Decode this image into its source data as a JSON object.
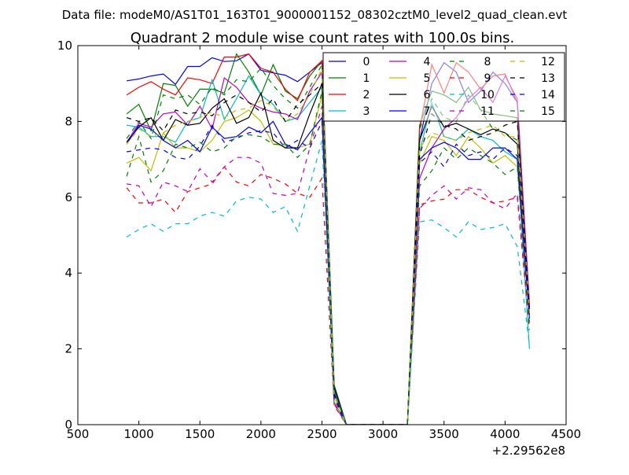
{
  "chart_data": {
    "type": "line",
    "suptitle": "Data file: modeM0/AS1T01_163T01_9000001152_08302cztM0_level2_quad_clean.evt",
    "title": "Quadrant 2 module wise count rates with 100.0s bins.",
    "xlabel": "",
    "ylabel": "",
    "x_offset_label": "+2.29562e8",
    "xlim": [
      500,
      4500
    ],
    "ylim": [
      0,
      10
    ],
    "xticks": [
      500,
      1000,
      1500,
      2000,
      2500,
      3000,
      3500,
      4000,
      4500
    ],
    "yticks": [
      0,
      2,
      4,
      6,
      8,
      10
    ],
    "grid": false,
    "legend_placement": "top-right",
    "legend_columns": 4,
    "x": [
      900,
      1000,
      1100,
      1200,
      1300,
      1400,
      1500,
      1600,
      1700,
      1800,
      1900,
      2000,
      2100,
      2200,
      2300,
      2400,
      2500,
      2600,
      2700,
      2800,
      2900,
      3000,
      3100,
      3200,
      3300,
      3400,
      3500,
      3600,
      3700,
      3800,
      3900,
      4000,
      4100,
      4200
    ],
    "series": [
      {
        "name": "0",
        "color": "#0000ff",
        "style": "solid",
        "values": [
          9.07,
          9.12,
          9.2,
          9.25,
          8.98,
          9.45,
          9.45,
          9.68,
          9.58,
          9.6,
          9.78,
          9.35,
          9.28,
          9.22,
          9.05,
          9.3,
          9.55,
          1.0,
          0,
          0,
          0,
          0,
          0,
          0,
          7.5,
          9.0,
          9.55,
          9.3,
          8.5,
          8.8,
          9.3,
          9.0,
          8.5,
          3.0
        ]
      },
      {
        "name": "1",
        "color": "#008000",
        "style": "solid",
        "values": [
          8.2,
          8.45,
          7.75,
          9.0,
          8.95,
          8.4,
          8.85,
          8.85,
          8.75,
          9.78,
          9.3,
          8.7,
          9.5,
          8.8,
          8.6,
          9.2,
          9.6,
          1.05,
          0,
          0,
          0,
          0,
          0,
          0,
          7.9,
          8.8,
          8.7,
          8.5,
          8.9,
          8.3,
          8.2,
          8.15,
          8.1,
          3.1
        ]
      },
      {
        "name": "2",
        "color": "#ff0000",
        "style": "solid",
        "values": [
          8.7,
          8.9,
          9.05,
          8.85,
          8.7,
          9.15,
          9.1,
          9.0,
          9.7,
          9.7,
          9.78,
          9.4,
          9.3,
          8.85,
          8.55,
          9.3,
          9.6,
          0.6,
          0,
          0,
          0,
          0,
          0,
          0,
          7.8,
          9.5,
          8.75,
          9.55,
          9.3,
          8.85,
          9.2,
          9.25,
          8.5,
          3.2
        ]
      },
      {
        "name": "3",
        "color": "#00bfbf",
        "style": "solid",
        "values": [
          7.9,
          7.85,
          7.6,
          7.6,
          7.45,
          8.0,
          8.1,
          9.1,
          8.05,
          8.6,
          9.2,
          8.7,
          8.45,
          8.0,
          8.1,
          8.5,
          8.9,
          0.9,
          0,
          0,
          0,
          0,
          0,
          0,
          7.2,
          8.5,
          7.6,
          7.5,
          7.8,
          7.6,
          7.5,
          7.2,
          7.0,
          2.0
        ]
      },
      {
        "name": "4",
        "color": "#bf00bf",
        "style": "solid",
        "values": [
          7.45,
          7.95,
          7.85,
          8.2,
          8.25,
          7.9,
          8.4,
          7.8,
          9.15,
          8.9,
          8.5,
          8.35,
          8.25,
          8.2,
          8.05,
          8.8,
          9.3,
          0.85,
          0,
          0,
          0,
          0,
          0,
          0,
          6.5,
          7.3,
          7.8,
          8.1,
          8.6,
          8.9,
          8.5,
          9.2,
          8.6,
          3.1
        ]
      },
      {
        "name": "5",
        "color": "#bfbf00",
        "style": "solid",
        "values": [
          6.9,
          7.05,
          6.7,
          7.7,
          7.3,
          7.3,
          7.2,
          7.5,
          8.0,
          8.1,
          8.3,
          8.0,
          7.4,
          7.35,
          7.3,
          7.4,
          8.7,
          0.8,
          0,
          0,
          0,
          0,
          0,
          0,
          6.9,
          7.6,
          7.5,
          7.1,
          7.6,
          7.3,
          6.9,
          7.1,
          6.8,
          2.9
        ]
      },
      {
        "name": "6",
        "color": "#000000",
        "style": "solid",
        "values": [
          7.45,
          7.85,
          8.1,
          7.5,
          8.05,
          7.9,
          7.95,
          8.35,
          8.6,
          7.95,
          8.1,
          8.75,
          7.5,
          7.3,
          7.3,
          8.2,
          9.0,
          1.0,
          0,
          0,
          0,
          0,
          0,
          0,
          7.5,
          8.4,
          7.85,
          7.95,
          7.8,
          7.65,
          7.8,
          7.7,
          7.4,
          3.0
        ]
      },
      {
        "name": "7",
        "color": "#0000ff",
        "style": "solid",
        "values": [
          7.4,
          7.9,
          7.8,
          7.5,
          7.3,
          7.5,
          7.2,
          7.85,
          7.55,
          7.6,
          7.85,
          7.7,
          8.0,
          7.4,
          7.25,
          7.7,
          8.1,
          0.95,
          0,
          0,
          0,
          0,
          0,
          0,
          7.0,
          7.3,
          7.45,
          7.3,
          7.0,
          7.0,
          7.3,
          7.3,
          7.0,
          2.8
        ]
      },
      {
        "name": "8",
        "color": "#008000",
        "style": "dashed",
        "values": [
          7.55,
          8.0,
          7.55,
          8.7,
          8.6,
          8.7,
          8.45,
          8.9,
          8.7,
          9.1,
          9.05,
          9.4,
          8.95,
          8.6,
          8.35,
          8.9,
          9.5,
          0.9,
          0,
          0,
          0,
          0,
          0,
          0,
          7.8,
          8.6,
          8.1,
          8.0,
          8.7,
          8.3,
          7.8,
          7.7,
          7.5,
          2.9
        ]
      },
      {
        "name": "9",
        "color": "#ff0000",
        "style": "dashed",
        "values": [
          6.25,
          5.85,
          5.85,
          5.95,
          5.6,
          6.15,
          6.25,
          6.35,
          6.8,
          6.4,
          6.3,
          6.6,
          6.5,
          6.35,
          6.1,
          6.0,
          6.5,
          0.5,
          0,
          0,
          0,
          0,
          0,
          0,
          5.8,
          5.9,
          5.95,
          6.2,
          6.2,
          6.0,
          5.85,
          5.9,
          6.0,
          2.5
        ]
      },
      {
        "name": "10",
        "color": "#00bfbf",
        "style": "dashed",
        "values": [
          4.95,
          5.15,
          5.3,
          5.1,
          5.3,
          5.3,
          5.5,
          5.6,
          5.5,
          5.9,
          6.0,
          5.95,
          5.6,
          5.75,
          5.1,
          6.3,
          7.5,
          0.6,
          0,
          0,
          0,
          0,
          0,
          0,
          5.35,
          5.4,
          5.2,
          4.95,
          5.35,
          5.15,
          5.2,
          5.3,
          4.7,
          2.1
        ]
      },
      {
        "name": "11",
        "color": "#bf00bf",
        "style": "dashed",
        "values": [
          6.35,
          6.3,
          5.75,
          6.4,
          6.3,
          6.15,
          6.75,
          6.4,
          6.8,
          7.05,
          7.05,
          6.9,
          6.1,
          6.05,
          6.1,
          7.3,
          8.4,
          0.55,
          0,
          0,
          0,
          0,
          0,
          0,
          5.7,
          6.05,
          6.3,
          5.95,
          6.25,
          6.2,
          5.85,
          5.7,
          6.1,
          2.7
        ]
      },
      {
        "name": "12",
        "color": "#bfbf00",
        "style": "dashed",
        "values": [
          7.4,
          7.8,
          7.6,
          7.7,
          7.9,
          8.0,
          8.1,
          8.25,
          8.1,
          8.3,
          8.35,
          8.55,
          8.4,
          8.0,
          8.2,
          8.7,
          9.4,
          0.75,
          0,
          0,
          0,
          0,
          0,
          0,
          7.3,
          7.7,
          7.6,
          7.5,
          7.7,
          7.8,
          7.9,
          7.6,
          7.6,
          3.0
        ]
      },
      {
        "name": "13",
        "color": "#000000",
        "style": "dashed",
        "values": [
          8.1,
          8.0,
          8.1,
          7.75,
          8.3,
          8.2,
          8.25,
          8.15,
          8.5,
          8.7,
          8.5,
          8.25,
          8.6,
          8.0,
          8.45,
          8.7,
          9.0,
          0.8,
          0,
          0,
          0,
          0,
          0,
          0,
          7.1,
          8.2,
          7.9,
          7.8,
          7.5,
          7.6,
          7.7,
          7.9,
          8.0,
          3.0
        ]
      },
      {
        "name": "14",
        "color": "#0000ff",
        "style": "dashed",
        "values": [
          7.2,
          7.25,
          7.3,
          7.25,
          7.05,
          7.0,
          7.35,
          7.9,
          7.45,
          7.55,
          7.7,
          7.75,
          7.7,
          7.3,
          7.5,
          7.3,
          8.0,
          0.7,
          0,
          0,
          0,
          0,
          0,
          0,
          6.9,
          7.2,
          6.8,
          7.4,
          7.1,
          7.2,
          7.0,
          7.3,
          7.1,
          2.9
        ]
      },
      {
        "name": "15",
        "color": "#008000",
        "style": "dashed",
        "values": [
          6.55,
          7.6,
          6.4,
          6.7,
          7.4,
          7.3,
          7.45,
          7.2,
          7.3,
          7.6,
          7.65,
          7.6,
          7.4,
          7.4,
          7.05,
          7.4,
          8.8,
          0.9,
          0,
          0,
          0,
          0,
          0,
          0,
          6.3,
          6.7,
          7.3,
          7.0,
          7.3,
          7.1,
          6.9,
          6.6,
          6.8,
          2.6
        ]
      }
    ]
  }
}
